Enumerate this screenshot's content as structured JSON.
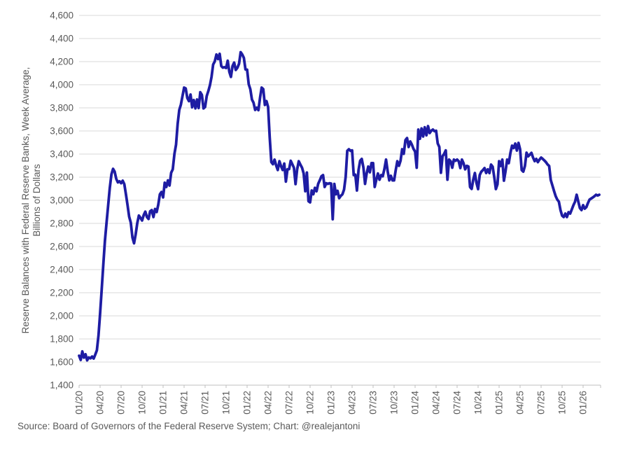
{
  "colors": {
    "line": "#1e1ca3",
    "grid": "#d9d9d9",
    "axis": "#bfbfbf",
    "tick_label": "#595959",
    "background": "#ffffff"
  },
  "footer": {
    "source_text": "Source: Board of Governors of the Federal Reserve System; Chart: @realejantoni"
  },
  "chart_data": {
    "type": "line",
    "title": "",
    "legend": "none",
    "grid": "horizontal",
    "ylabel_line1": "Reserve Balances with Federal Reserve Banks, Week Average,",
    "ylabel_line2": "Billions of Dollars",
    "xlabel": "",
    "ylim": [
      1400,
      4600
    ],
    "y_step": 200,
    "y_tick_labels": [
      "4,600",
      "4,400",
      "4,200",
      "4,000",
      "3,800",
      "3,600",
      "3,400",
      "3,200",
      "3,000",
      "2,800",
      "2,600",
      "2,400",
      "2,200",
      "2,000",
      "1,800",
      "1,600",
      "1,400"
    ],
    "x_tick_labels": [
      "01/20",
      "04/20",
      "07/20",
      "10/20",
      "01/21",
      "04/21",
      "07/21",
      "10/21",
      "01/22",
      "04/22",
      "07/22",
      "10/22",
      "01/23",
      "04/23",
      "07/23",
      "10/23",
      "01/24",
      "04/24",
      "07/24",
      "10/24",
      "01/25",
      "04/25",
      "07/25",
      "10/25",
      "01/26"
    ],
    "points_per_tick": 13,
    "frequency": "weekly",
    "series": [
      {
        "name": "Reserve Balances with Federal Reserve Banks (Billions of Dollars)",
        "values": [
          1655,
          1618,
          1692,
          1638,
          1668,
          1615,
          1640,
          1632,
          1648,
          1630,
          1665,
          1702,
          1830,
          2020,
          2230,
          2445,
          2650,
          2805,
          2955,
          3105,
          3225,
          3272,
          3248,
          3185,
          3155,
          3165,
          3148,
          3170,
          3140,
          3052,
          2958,
          2858,
          2808,
          2678,
          2628,
          2705,
          2802,
          2868,
          2848,
          2825,
          2872,
          2902,
          2855,
          2838,
          2905,
          2915,
          2855,
          2925,
          2898,
          2962,
          3052,
          3072,
          3025,
          3152,
          3115,
          3172,
          3128,
          3238,
          3268,
          3402,
          3482,
          3662,
          3782,
          3828,
          3902,
          3975,
          3968,
          3885,
          3858,
          3915,
          3805,
          3868,
          3795,
          3872,
          3798,
          3935,
          3912,
          3795,
          3808,
          3902,
          3945,
          3995,
          4068,
          4175,
          4202,
          4262,
          4222,
          4268,
          4162,
          4148,
          4152,
          4145,
          4208,
          4112,
          4068,
          4162,
          4192,
          4128,
          4148,
          4182,
          4282,
          4262,
          4232,
          4132,
          4130,
          4005,
          3962,
          3872,
          3845,
          3782,
          3802,
          3780,
          3888,
          3975,
          3962,
          3825,
          3858,
          3808,
          3545,
          3330,
          3312,
          3352,
          3302,
          3262,
          3338,
          3295,
          3262,
          3318,
          3162,
          3268,
          3270,
          3342,
          3312,
          3282,
          3140,
          3268,
          3338,
          3308,
          3282,
          3232,
          3078,
          3240,
          2992,
          2982,
          3085,
          3052,
          3108,
          3078,
          3142,
          3172,
          3208,
          3218,
          3115,
          3148,
          3142,
          3148,
          3145,
          2836,
          3142,
          3052,
          3082,
          3018,
          3038,
          3052,
          3092,
          3202,
          3428,
          3442,
          3428,
          3432,
          3218,
          3222,
          3085,
          3262,
          3342,
          3358,
          3282,
          3142,
          3232,
          3292,
          3242,
          3322,
          3322,
          3115,
          3178,
          3232,
          3178,
          3218,
          3208,
          3272,
          3352,
          3252,
          3172,
          3212,
          3172,
          3172,
          3260,
          3338,
          3298,
          3342,
          3442,
          3402,
          3521,
          3539,
          3461,
          3509,
          3482,
          3445,
          3422,
          3282,
          3612,
          3532,
          3622,
          3552,
          3632,
          3562,
          3642,
          3582,
          3602,
          3612,
          3598,
          3602,
          3492,
          3462,
          3238,
          3382,
          3402,
          3432,
          3178,
          3352,
          3338,
          3282,
          3352,
          3342,
          3352,
          3338,
          3279,
          3352,
          3321,
          3268,
          3298,
          3292,
          3115,
          3098,
          3180,
          3236,
          3150,
          3097,
          3218,
          3248,
          3262,
          3279,
          3236,
          3267,
          3236,
          3309,
          3291,
          3200,
          3097,
          3139,
          3339,
          3297,
          3352,
          3170,
          3252,
          3352,
          3321,
          3410,
          3473,
          3452,
          3491,
          3430,
          3497,
          3442,
          3261,
          3248,
          3297,
          3412,
          3380,
          3395,
          3410,
          3370,
          3339,
          3358,
          3330,
          3352,
          3370,
          3358,
          3345,
          3330,
          3310,
          3297,
          3176,
          3127,
          3080,
          3036,
          3006,
          2988,
          2915,
          2867,
          2855,
          2885,
          2855,
          2897,
          2885,
          2920,
          2958,
          2988,
          3048,
          2990,
          2933,
          2915,
          2958,
          2927,
          2940,
          2976,
          3006,
          3015,
          3024,
          3035,
          3048,
          3042,
          3048
        ]
      }
    ]
  }
}
